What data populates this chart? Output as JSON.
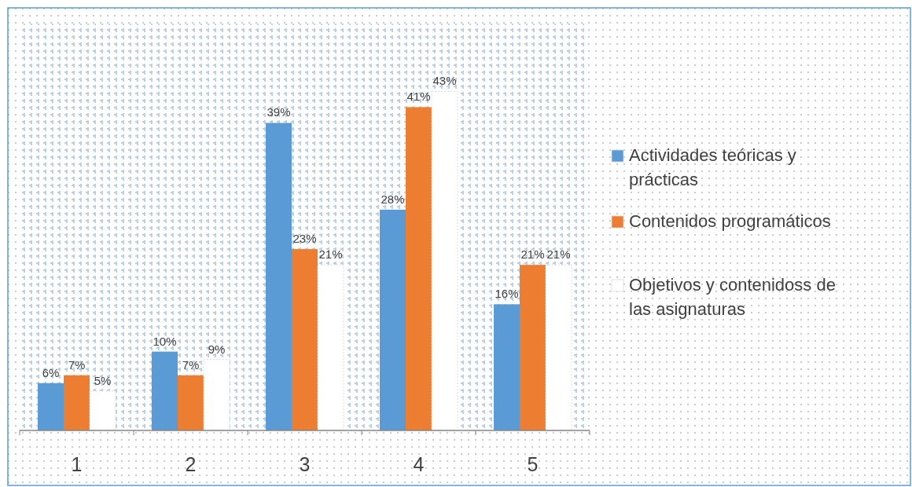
{
  "chart_data": {
    "type": "bar",
    "categories": [
      "1",
      "2",
      "3",
      "4",
      "5"
    ],
    "series": [
      {
        "name": "Actividades teóricas y prácticas",
        "color": "#5b9bd5",
        "values": [
          6,
          10,
          39,
          28,
          16
        ],
        "value_labels": [
          "6%",
          "10%",
          "39%",
          "28%",
          "16%"
        ]
      },
      {
        "name": "Contenidos programáticos",
        "color": "#ed7d31",
        "values": [
          7,
          7,
          23,
          41,
          21
        ],
        "value_labels": [
          "7%",
          "7%",
          "23%",
          "41%",
          "21%"
        ]
      },
      {
        "name": "Objetivos y contenidoss de las asignaturas",
        "color": "#ffffff",
        "values": [
          5,
          9,
          21,
          43,
          21
        ],
        "value_labels": [
          "5%",
          "9%",
          "21%",
          "43%",
          "21%"
        ]
      }
    ],
    "legend": "right"
  }
}
